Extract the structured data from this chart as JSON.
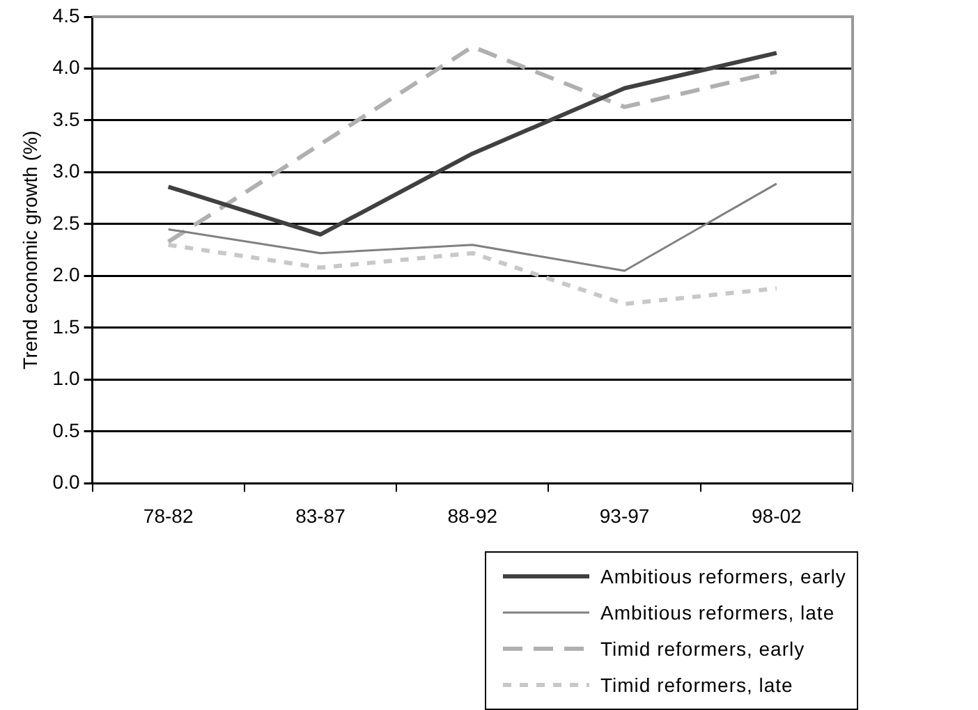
{
  "chart_data": {
    "type": "line",
    "ylabel": "Trend economic growth (%)",
    "categories": [
      "78-82",
      "83-87",
      "88-92",
      "93-97",
      "98-02"
    ],
    "series": [
      {
        "name": "Ambitious reformers, early",
        "color": "#404040",
        "line_style": "solid",
        "values": [
          2.86,
          2.4,
          3.18,
          3.81,
          4.15
        ]
      },
      {
        "name": "Ambitious reformers, late",
        "color": "#808080",
        "line_style": "solid",
        "values": [
          2.45,
          2.22,
          2.3,
          2.05,
          2.89
        ]
      },
      {
        "name": "Timid reformers, early",
        "color": "#b0b0b0",
        "line_style": "dashed",
        "values": [
          2.33,
          3.27,
          4.21,
          3.63,
          3.97
        ]
      },
      {
        "name": "Timid reformers, late",
        "color": "#c8c8c8",
        "line_style": "dotted",
        "values": [
          2.3,
          2.08,
          2.22,
          1.73,
          1.88
        ]
      }
    ],
    "ylim": [
      0,
      4.5
    ],
    "yticks": [
      {
        "value": 0,
        "label": "0.0"
      },
      {
        "value": 0.5,
        "label": "0.5"
      },
      {
        "value": 1,
        "label": "1.0"
      },
      {
        "value": 1.5,
        "label": "1.5"
      },
      {
        "value": 2,
        "label": "2.0"
      },
      {
        "value": 2.5,
        "label": "2.5"
      },
      {
        "value": 3,
        "label": "3.0"
      },
      {
        "value": 3.5,
        "label": "3.5"
      },
      {
        "value": 4,
        "label": "4.0"
      },
      {
        "value": 4.5,
        "label": "4.5"
      }
    ],
    "grid": "y",
    "legend": "bottom right",
    "marker": "none"
  }
}
